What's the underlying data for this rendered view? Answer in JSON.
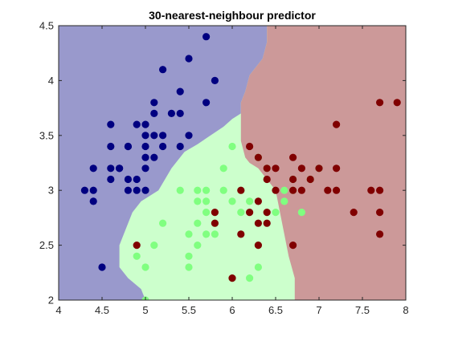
{
  "chart_data": {
    "type": "scatter",
    "title": "30-nearest-neighbour predictor",
    "xlabel": "",
    "ylabel": "",
    "xlim": [
      4,
      8
    ],
    "ylim": [
      2,
      4.5
    ],
    "x_ticks": [
      "4",
      "4.5",
      "5",
      "5.5",
      "6",
      "6.5",
      "7",
      "7.5",
      "8"
    ],
    "y_ticks": [
      "2",
      "2.5",
      "3",
      "3.5",
      "4",
      "4.5"
    ],
    "grid": false,
    "colors": {
      "region_class1": "#9999cc",
      "region_class2": "#ccffcc",
      "region_class3": "#cc9999",
      "class1": "#000080",
      "class2": "#80ff80",
      "class3": "#800000"
    },
    "regions": [
      {
        "class": "class1",
        "polygon": [
          [
            4,
            4.5
          ],
          [
            6.4,
            4.5
          ],
          [
            6.4,
            4.35
          ],
          [
            6.35,
            4.2
          ],
          [
            6.2,
            4.05
          ],
          [
            6.15,
            3.9
          ],
          [
            6.1,
            3.8
          ],
          [
            6.1,
            3.7
          ],
          [
            6.0,
            3.65
          ],
          [
            5.9,
            3.58
          ],
          [
            5.75,
            3.5
          ],
          [
            5.6,
            3.42
          ],
          [
            5.45,
            3.35
          ],
          [
            5.3,
            3.2
          ],
          [
            5.15,
            3.0
          ],
          [
            4.95,
            2.9
          ],
          [
            4.85,
            2.8
          ],
          [
            4.8,
            2.7
          ],
          [
            4.75,
            2.6
          ],
          [
            4.7,
            2.5
          ],
          [
            4.7,
            2.4
          ],
          [
            4.7,
            2.3
          ],
          [
            4.8,
            2.2
          ],
          [
            4.95,
            2.1
          ],
          [
            5.0,
            2.0
          ],
          [
            4,
            2
          ]
        ]
      },
      {
        "class": "class3",
        "polygon": [
          [
            6.4,
            4.5
          ],
          [
            8,
            4.5
          ],
          [
            8,
            2
          ],
          [
            6.72,
            2
          ],
          [
            6.72,
            2.2
          ],
          [
            6.65,
            2.4
          ],
          [
            6.6,
            2.6
          ],
          [
            6.55,
            2.8
          ],
          [
            6.5,
            3.0
          ],
          [
            6.4,
            3.1
          ],
          [
            6.3,
            3.2
          ],
          [
            6.2,
            3.25
          ],
          [
            6.15,
            3.3
          ],
          [
            6.1,
            3.45
          ],
          [
            6.1,
            3.6
          ],
          [
            6.1,
            3.7
          ],
          [
            6.1,
            3.8
          ],
          [
            6.15,
            3.9
          ],
          [
            6.2,
            4.05
          ],
          [
            6.35,
            4.2
          ],
          [
            6.4,
            4.35
          ]
        ]
      }
    ],
    "series": [
      {
        "class": "class1",
        "points": [
          [
            4.3,
            3.0
          ],
          [
            4.4,
            3.2
          ],
          [
            4.4,
            2.9
          ],
          [
            4.4,
            3.0
          ],
          [
            4.5,
            2.3
          ],
          [
            4.6,
            3.1
          ],
          [
            4.6,
            3.2
          ],
          [
            4.6,
            3.4
          ],
          [
            4.6,
            3.6
          ],
          [
            4.7,
            3.2
          ],
          [
            4.7,
            3.2
          ],
          [
            4.8,
            3.0
          ],
          [
            4.8,
            3.1
          ],
          [
            4.8,
            3.4
          ],
          [
            4.8,
            3.4
          ],
          [
            4.9,
            3.0
          ],
          [
            4.9,
            3.1
          ],
          [
            4.9,
            3.6
          ],
          [
            5.0,
            3.0
          ],
          [
            5.0,
            3.2
          ],
          [
            5.0,
            3.3
          ],
          [
            5.0,
            3.4
          ],
          [
            5.0,
            3.5
          ],
          [
            5.0,
            3.6
          ],
          [
            5.1,
            3.3
          ],
          [
            5.1,
            3.5
          ],
          [
            5.1,
            3.7
          ],
          [
            5.1,
            3.8
          ],
          [
            5.2,
            3.4
          ],
          [
            5.2,
            3.5
          ],
          [
            5.2,
            4.1
          ],
          [
            5.3,
            3.7
          ],
          [
            5.4,
            3.4
          ],
          [
            5.4,
            3.7
          ],
          [
            5.4,
            3.9
          ],
          [
            5.5,
            3.5
          ],
          [
            5.5,
            4.2
          ],
          [
            5.7,
            3.8
          ],
          [
            5.7,
            4.4
          ],
          [
            5.8,
            4.0
          ]
        ]
      },
      {
        "class": "class2",
        "points": [
          [
            4.9,
            2.4
          ],
          [
            5.0,
            2.0
          ],
          [
            5.0,
            2.3
          ],
          [
            5.1,
            2.5
          ],
          [
            5.2,
            2.7
          ],
          [
            5.4,
            3.0
          ],
          [
            5.5,
            2.3
          ],
          [
            5.5,
            2.4
          ],
          [
            5.5,
            2.6
          ],
          [
            5.6,
            2.5
          ],
          [
            5.6,
            2.7
          ],
          [
            5.6,
            2.9
          ],
          [
            5.6,
            3.0
          ],
          [
            5.7,
            2.6
          ],
          [
            5.7,
            2.8
          ],
          [
            5.7,
            2.9
          ],
          [
            5.7,
            3.0
          ],
          [
            5.8,
            2.6
          ],
          [
            5.8,
            2.7
          ],
          [
            5.9,
            3.0
          ],
          [
            5.9,
            3.2
          ],
          [
            6.0,
            2.2
          ],
          [
            6.0,
            2.9
          ],
          [
            6.0,
            3.4
          ],
          [
            6.1,
            2.8
          ],
          [
            6.1,
            3.0
          ],
          [
            6.2,
            2.2
          ],
          [
            6.2,
            2.9
          ],
          [
            6.3,
            2.3
          ],
          [
            6.3,
            2.5
          ],
          [
            6.3,
            3.3
          ],
          [
            6.4,
            3.2
          ],
          [
            6.5,
            2.8
          ],
          [
            6.6,
            2.9
          ],
          [
            6.6,
            3.0
          ],
          [
            6.7,
            3.0
          ],
          [
            6.7,
            3.1
          ],
          [
            6.8,
            2.8
          ],
          [
            6.9,
            3.1
          ],
          [
            7.0,
            3.2
          ]
        ]
      },
      {
        "class": "class3",
        "points": [
          [
            4.9,
            2.5
          ],
          [
            5.8,
            2.7
          ],
          [
            5.8,
            2.8
          ],
          [
            6.0,
            2.2
          ],
          [
            6.1,
            2.6
          ],
          [
            6.1,
            3.0
          ],
          [
            6.2,
            2.8
          ],
          [
            6.2,
            3.4
          ],
          [
            6.3,
            2.5
          ],
          [
            6.3,
            2.7
          ],
          [
            6.3,
            2.9
          ],
          [
            6.3,
            3.3
          ],
          [
            6.4,
            2.7
          ],
          [
            6.4,
            2.8
          ],
          [
            6.4,
            3.1
          ],
          [
            6.4,
            3.2
          ],
          [
            6.5,
            3.0
          ],
          [
            6.5,
            3.2
          ],
          [
            6.7,
            2.5
          ],
          [
            6.7,
            3.0
          ],
          [
            6.7,
            3.1
          ],
          [
            6.7,
            3.3
          ],
          [
            6.8,
            3.0
          ],
          [
            6.8,
            3.2
          ],
          [
            6.9,
            3.1
          ],
          [
            7.0,
            3.2
          ],
          [
            7.1,
            3.0
          ],
          [
            7.2,
            3.0
          ],
          [
            7.2,
            3.2
          ],
          [
            7.2,
            3.6
          ],
          [
            7.4,
            2.8
          ],
          [
            7.6,
            3.0
          ],
          [
            7.7,
            2.6
          ],
          [
            7.7,
            2.8
          ],
          [
            7.7,
            3.0
          ],
          [
            7.7,
            3.8
          ],
          [
            7.9,
            3.8
          ]
        ]
      }
    ]
  }
}
